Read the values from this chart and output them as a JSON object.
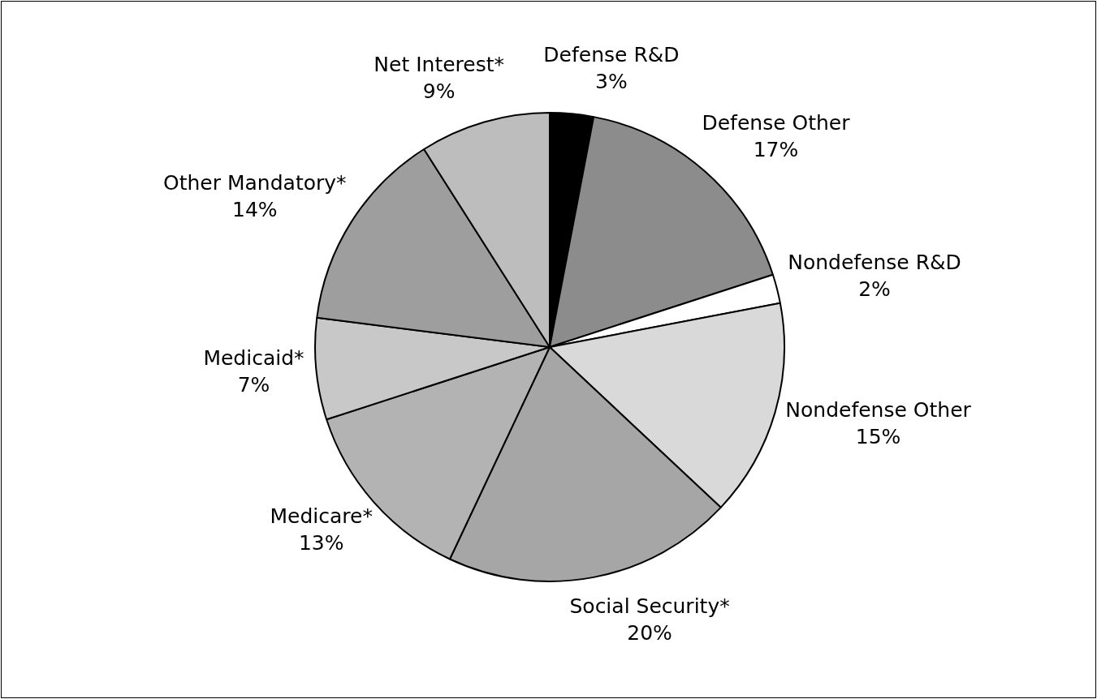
{
  "chart_data": {
    "type": "pie",
    "categories": [
      "Defense R&D",
      "Defense Other",
      "Nondefense R&D",
      "Nondefense Other",
      "Social Security*",
      "Medicare*",
      "Medicaid*",
      "Other Mandatory*",
      "Net Interest*"
    ],
    "values": [
      3,
      17,
      2,
      15,
      20,
      13,
      7,
      14,
      9
    ],
    "colors": [
      "#000000",
      "#8c8c8c",
      "#ffffff",
      "#d9d9d9",
      "#a6a6a6",
      "#b3b3b3",
      "#c8c8c8",
      "#9e9e9e",
      "#bdbdbd"
    ],
    "value_labels": [
      "3%",
      "17%",
      "2%",
      "15%",
      "20%",
      "13%",
      "7%",
      "14%",
      "9%"
    ],
    "legend": false
  }
}
